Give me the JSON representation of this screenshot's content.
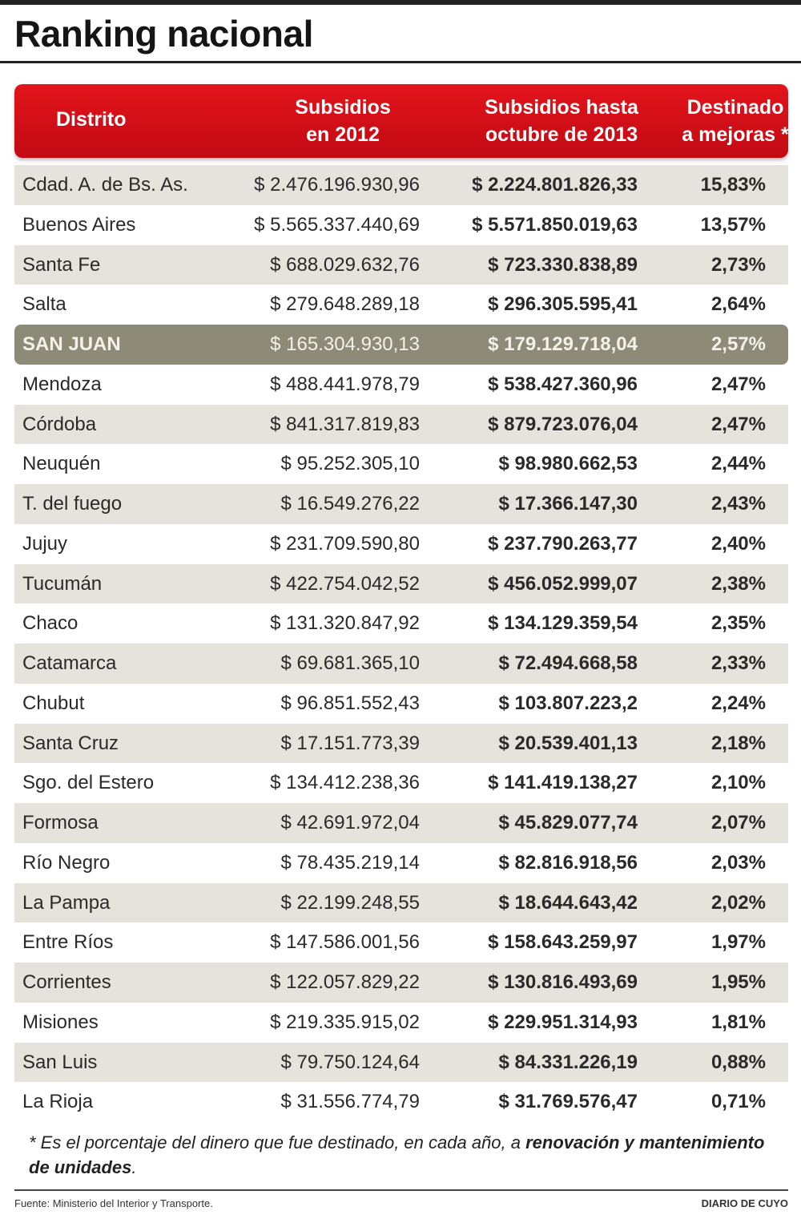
{
  "title": "Ranking nacional",
  "header": {
    "col1": "Distrito",
    "col2_line1": "Subsidios",
    "col2_line2": "en 2012",
    "col3_line1": "Subsidios hasta",
    "col3_line2": "octubre de 2013",
    "col4_line1": "Destinado",
    "col4_line2": "a mejoras *"
  },
  "colors": {
    "header_red": "#d7101a",
    "highlight_row": "#8e8a78",
    "shaded_row": "#e6e3dc"
  },
  "highlighted_district": "SAN JUAN",
  "rows": [
    {
      "distrito": "Cdad. A. de Bs. As.",
      "s2012": "$ 2.476.196.930,96",
      "s2013": "$ 2.224.801.826,33",
      "pct": "15,83%"
    },
    {
      "distrito": "Buenos Aires",
      "s2012": "$ 5.565.337.440,69",
      "s2013": "$ 5.571.850.019,63",
      "pct": "13,57%"
    },
    {
      "distrito": "Santa Fe",
      "s2012": "$ 688.029.632,76",
      "s2013": "$ 723.330.838,89",
      "pct": "2,73%"
    },
    {
      "distrito": "Salta",
      "s2012": "$ 279.648.289,18",
      "s2013": "$ 296.305.595,41",
      "pct": "2,64%"
    },
    {
      "distrito": "SAN JUAN",
      "s2012": "$ 165.304.930,13",
      "s2013": "$ 179.129.718,04",
      "pct": "2,57%"
    },
    {
      "distrito": "Mendoza",
      "s2012": "$ 488.441.978,79",
      "s2013": "$ 538.427.360,96",
      "pct": "2,47%"
    },
    {
      "distrito": "Córdoba",
      "s2012": "$ 841.317.819,83",
      "s2013": "$ 879.723.076,04",
      "pct": "2,47%"
    },
    {
      "distrito": "Neuquén",
      "s2012": "$ 95.252.305,10",
      "s2013": "$ 98.980.662,53",
      "pct": "2,44%"
    },
    {
      "distrito": "T. del fuego",
      "s2012": "$ 16.549.276,22",
      "s2013": "$ 17.366.147,30",
      "pct": "2,43%"
    },
    {
      "distrito": "Jujuy",
      "s2012": "$ 231.709.590,80",
      "s2013": "$ 237.790.263,77",
      "pct": "2,40%"
    },
    {
      "distrito": "Tucumán",
      "s2012": "$ 422.754.042,52",
      "s2013": "$ 456.052.999,07",
      "pct": "2,38%"
    },
    {
      "distrito": "Chaco",
      "s2012": "$ 131.320.847,92",
      "s2013": "$ 134.129.359,54",
      "pct": "2,35%"
    },
    {
      "distrito": "Catamarca",
      "s2012": "$ 69.681.365,10",
      "s2013": "$ 72.494.668,58",
      "pct": "2,33%"
    },
    {
      "distrito": "Chubut",
      "s2012": "$ 96.851.552,43",
      "s2013": "$ 103.807.223,2",
      "pct": "2,24%"
    },
    {
      "distrito": "Santa Cruz",
      "s2012": "$ 17.151.773,39",
      "s2013": "$ 20.539.401,13",
      "pct": "2,18%"
    },
    {
      "distrito": "Sgo. del Estero",
      "s2012": "$ 134.412.238,36",
      "s2013": "$ 141.419.138,27",
      "pct": "2,10%"
    },
    {
      "distrito": "Formosa",
      "s2012": "$ 42.691.972,04",
      "s2013": "$ 45.829.077,74",
      "pct": "2,07%"
    },
    {
      "distrito": "Río Negro",
      "s2012": "$ 78.435.219,14",
      "s2013": "$ 82.816.918,56",
      "pct": "2,03%"
    },
    {
      "distrito": "La Pampa",
      "s2012": "$ 22.199.248,55",
      "s2013": "$ 18.644.643,42",
      "pct": "2,02%"
    },
    {
      "distrito": "Entre Ríos",
      "s2012": "$ 147.586.001,56",
      "s2013": "$ 158.643.259,97",
      "pct": "1,97%"
    },
    {
      "distrito": "Corrientes",
      "s2012": "$ 122.057.829,22",
      "s2013": "$ 130.816.493,69",
      "pct": "1,95%"
    },
    {
      "distrito": "Misiones",
      "s2012": "$ 219.335.915,02",
      "s2013": "$ 229.951.314,93",
      "pct": "1,81%"
    },
    {
      "distrito": "San Luis",
      "s2012": "$ 79.750.124,64",
      "s2013": "$ 84.331.226,19",
      "pct": "0,88%"
    },
    {
      "distrito": "La Rioja",
      "s2012": "$ 31.556.774,79",
      "s2013": "$ 31.769.576,47",
      "pct": "0,71%"
    }
  ],
  "footnote": {
    "text": "* Es el porcentaje del dinero que fue destinado, en cada año, a ",
    "bold": "renovación y mantenimiento de unidades",
    "end": "."
  },
  "source": "Fuente: Ministerio del Interior y Transporte.",
  "brand": "DIARIO DE CUYO"
}
